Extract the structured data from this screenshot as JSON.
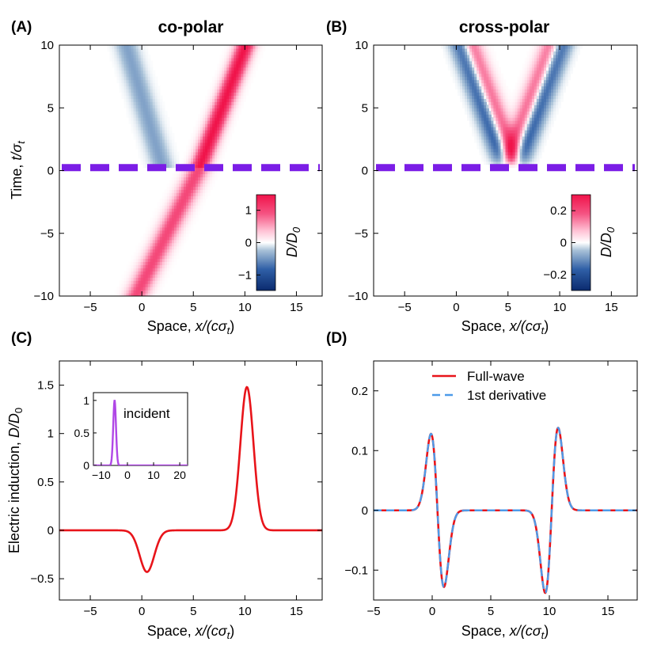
{
  "panels": {
    "A": {
      "label": "(A)",
      "title": "co-polar"
    },
    "B": {
      "label": "(B)",
      "title": "cross-polar"
    },
    "C": {
      "label": "(C)"
    },
    "D": {
      "label": "(D)"
    }
  },
  "axis_labels": {
    "space_prefix": "Space,  ",
    "space_var": "x/(cσ",
    "space_sub": "t",
    "space_close": ")",
    "time_prefix": "Time,  ",
    "time_var": "t/σ",
    "time_sub": "t",
    "electric_prefix": "Electric induction,  ",
    "electric_var": "D/D",
    "electric_sub": "0",
    "colorbar_var": "D/D",
    "colorbar_sub": "0"
  },
  "colors": {
    "pos": "#f0134a",
    "neg": "#0b2a6e",
    "mid": "#ffffff",
    "boundary": "#7b1de6",
    "full_wave": "#e8141a",
    "derivative": "#4d9be9",
    "incident": "#b047e6"
  },
  "chart_data": [
    {
      "id": "A",
      "type": "heatmap",
      "title": "co-polar",
      "xlabel": "Space,  x/(cσt)",
      "ylabel": "Time,  t/σt",
      "xlim": [
        -8,
        17.5
      ],
      "ylim": [
        -10,
        10
      ],
      "xticks": [
        -5,
        0,
        5,
        10,
        15
      ],
      "yticks": [
        -10,
        -5,
        0,
        5,
        10
      ],
      "interface_time": 0.3,
      "incident_velocity": 0.6,
      "incident_x_at_interface": 5.6,
      "transmitted": {
        "amplitude": 1.48,
        "velocity": 0.4,
        "width": 0.9
      },
      "reflected": {
        "amplitude": -0.43,
        "velocity": -0.4,
        "width": 1.0
      },
      "colorbar": {
        "label": "D/D0",
        "range": [
          -1.48,
          1.48
        ],
        "ticks": [
          -1,
          0,
          1
        ]
      }
    },
    {
      "id": "B",
      "type": "heatmap",
      "title": "cross-polar",
      "xlabel": "Space,  x/(cσt)",
      "xlim": [
        -8,
        17.5
      ],
      "ylim": [
        -10,
        10
      ],
      "xticks": [
        -5,
        0,
        5,
        10,
        15
      ],
      "yticks": [
        -10,
        -5,
        0,
        5,
        10
      ],
      "interface_time": 0.3,
      "origin_x": 5.3,
      "transmitted_velocity": 0.45,
      "reflected_velocity": -0.45,
      "amplitude": 0.3,
      "colorbar": {
        "label": "D/D0",
        "range": [
          -0.3,
          0.3
        ],
        "ticks": [
          -0.2,
          0,
          0.2
        ]
      }
    },
    {
      "id": "C",
      "type": "line",
      "xlabel": "Space,  x/(cσt)",
      "ylabel": "Electric induction,  D/D0",
      "xlim": [
        -8,
        17.5
      ],
      "ylim": [
        -0.72,
        1.75
      ],
      "xticks": [
        -5,
        0,
        5,
        10,
        15
      ],
      "yticks": [
        -0.5,
        0,
        0.5,
        1,
        1.5
      ],
      "ytick_labels": [
        "−0.5",
        "0",
        "0.5",
        "1",
        "1.5"
      ],
      "series": [
        {
          "name": "D/D0",
          "color": "#e8141a",
          "gaussians": [
            {
              "amp": 1.48,
              "center": 10.2,
              "width": 0.9
            },
            {
              "amp": -0.43,
              "center": 0.5,
              "width": 1.0
            }
          ]
        }
      ],
      "inset": {
        "label": "incident",
        "xlim": [
          -13,
          23
        ],
        "ylim": [
          0,
          1.12
        ],
        "xticks": [
          -10,
          0,
          10,
          20
        ],
        "yticks": [
          0,
          0.5,
          1
        ],
        "ytick_labels": [
          "0",
          "0.5",
          "1"
        ],
        "series": [
          {
            "name": "incident",
            "color": "#b047e6",
            "gaussians": [
              {
                "amp": 1.0,
                "center": -4.9,
                "width": 0.75
              }
            ]
          }
        ]
      }
    },
    {
      "id": "D",
      "type": "line",
      "xlabel": "Space,  x/(cσt)",
      "xlim": [
        -5,
        17.5
      ],
      "ylim": [
        -0.15,
        0.25
      ],
      "xticks": [
        -5,
        0,
        5,
        10,
        15
      ],
      "yticks": [
        -0.1,
        0,
        0.1,
        0.2
      ],
      "ytick_labels": [
        "−0.1",
        "0",
        "0.1",
        "0.2"
      ],
      "legend_position": "top-center",
      "series": [
        {
          "name": "Full-wave",
          "color": "#e8141a",
          "style": "solid",
          "dgauss": [
            {
              "amp": 0.128,
              "center": 0.45,
              "width": 0.55
            },
            {
              "amp": -0.138,
              "center": 10.2,
              "width": 0.55
            }
          ]
        },
        {
          "name": "1st derivative",
          "color": "#4d9be9",
          "style": "dashed",
          "dgauss": [
            {
              "amp": 0.128,
              "center": 0.45,
              "width": 0.55
            },
            {
              "amp": -0.138,
              "center": 10.2,
              "width": 0.55
            }
          ]
        }
      ]
    }
  ]
}
